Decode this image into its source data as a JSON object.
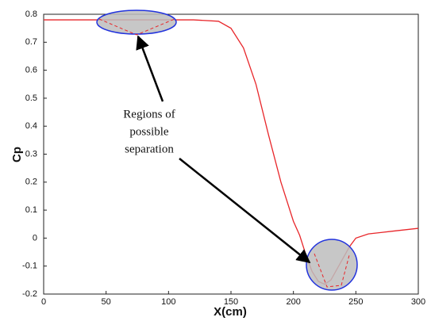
{
  "chart_data": {
    "type": "line",
    "x_label": "X(cm)",
    "y_label": "Cp",
    "x": [
      0,
      20,
      40,
      60,
      80,
      100,
      120,
      140,
      150,
      160,
      170,
      180,
      190,
      200,
      205,
      210,
      215,
      220,
      225,
      230,
      235,
      240,
      245,
      250,
      260,
      270,
      280,
      290,
      300
    ],
    "series": [
      {
        "name": "Cp",
        "color": "#e8262a",
        "values": [
          0.78,
          0.78,
          0.78,
          0.78,
          0.78,
          0.78,
          0.78,
          0.775,
          0.75,
          0.68,
          0.55,
          0.37,
          0.2,
          0.06,
          0.01,
          -0.06,
          -0.12,
          -0.155,
          -0.165,
          -0.15,
          -0.11,
          -0.07,
          -0.03,
          0.0,
          0.015,
          0.02,
          0.025,
          0.03,
          0.035
        ]
      }
    ],
    "xlim": [
      0,
      300
    ],
    "xticks": [
      0,
      50,
      100,
      150,
      200,
      250,
      300
    ],
    "ylim": [
      -0.2,
      0.8
    ],
    "yticks": [
      -0.2,
      -0.1,
      0,
      0.1,
      0.2,
      0.3,
      0.4,
      0.5,
      0.6,
      0.7,
      0.8
    ],
    "annotation": [
      "Regions of",
      "possible",
      "separation"
    ]
  }
}
